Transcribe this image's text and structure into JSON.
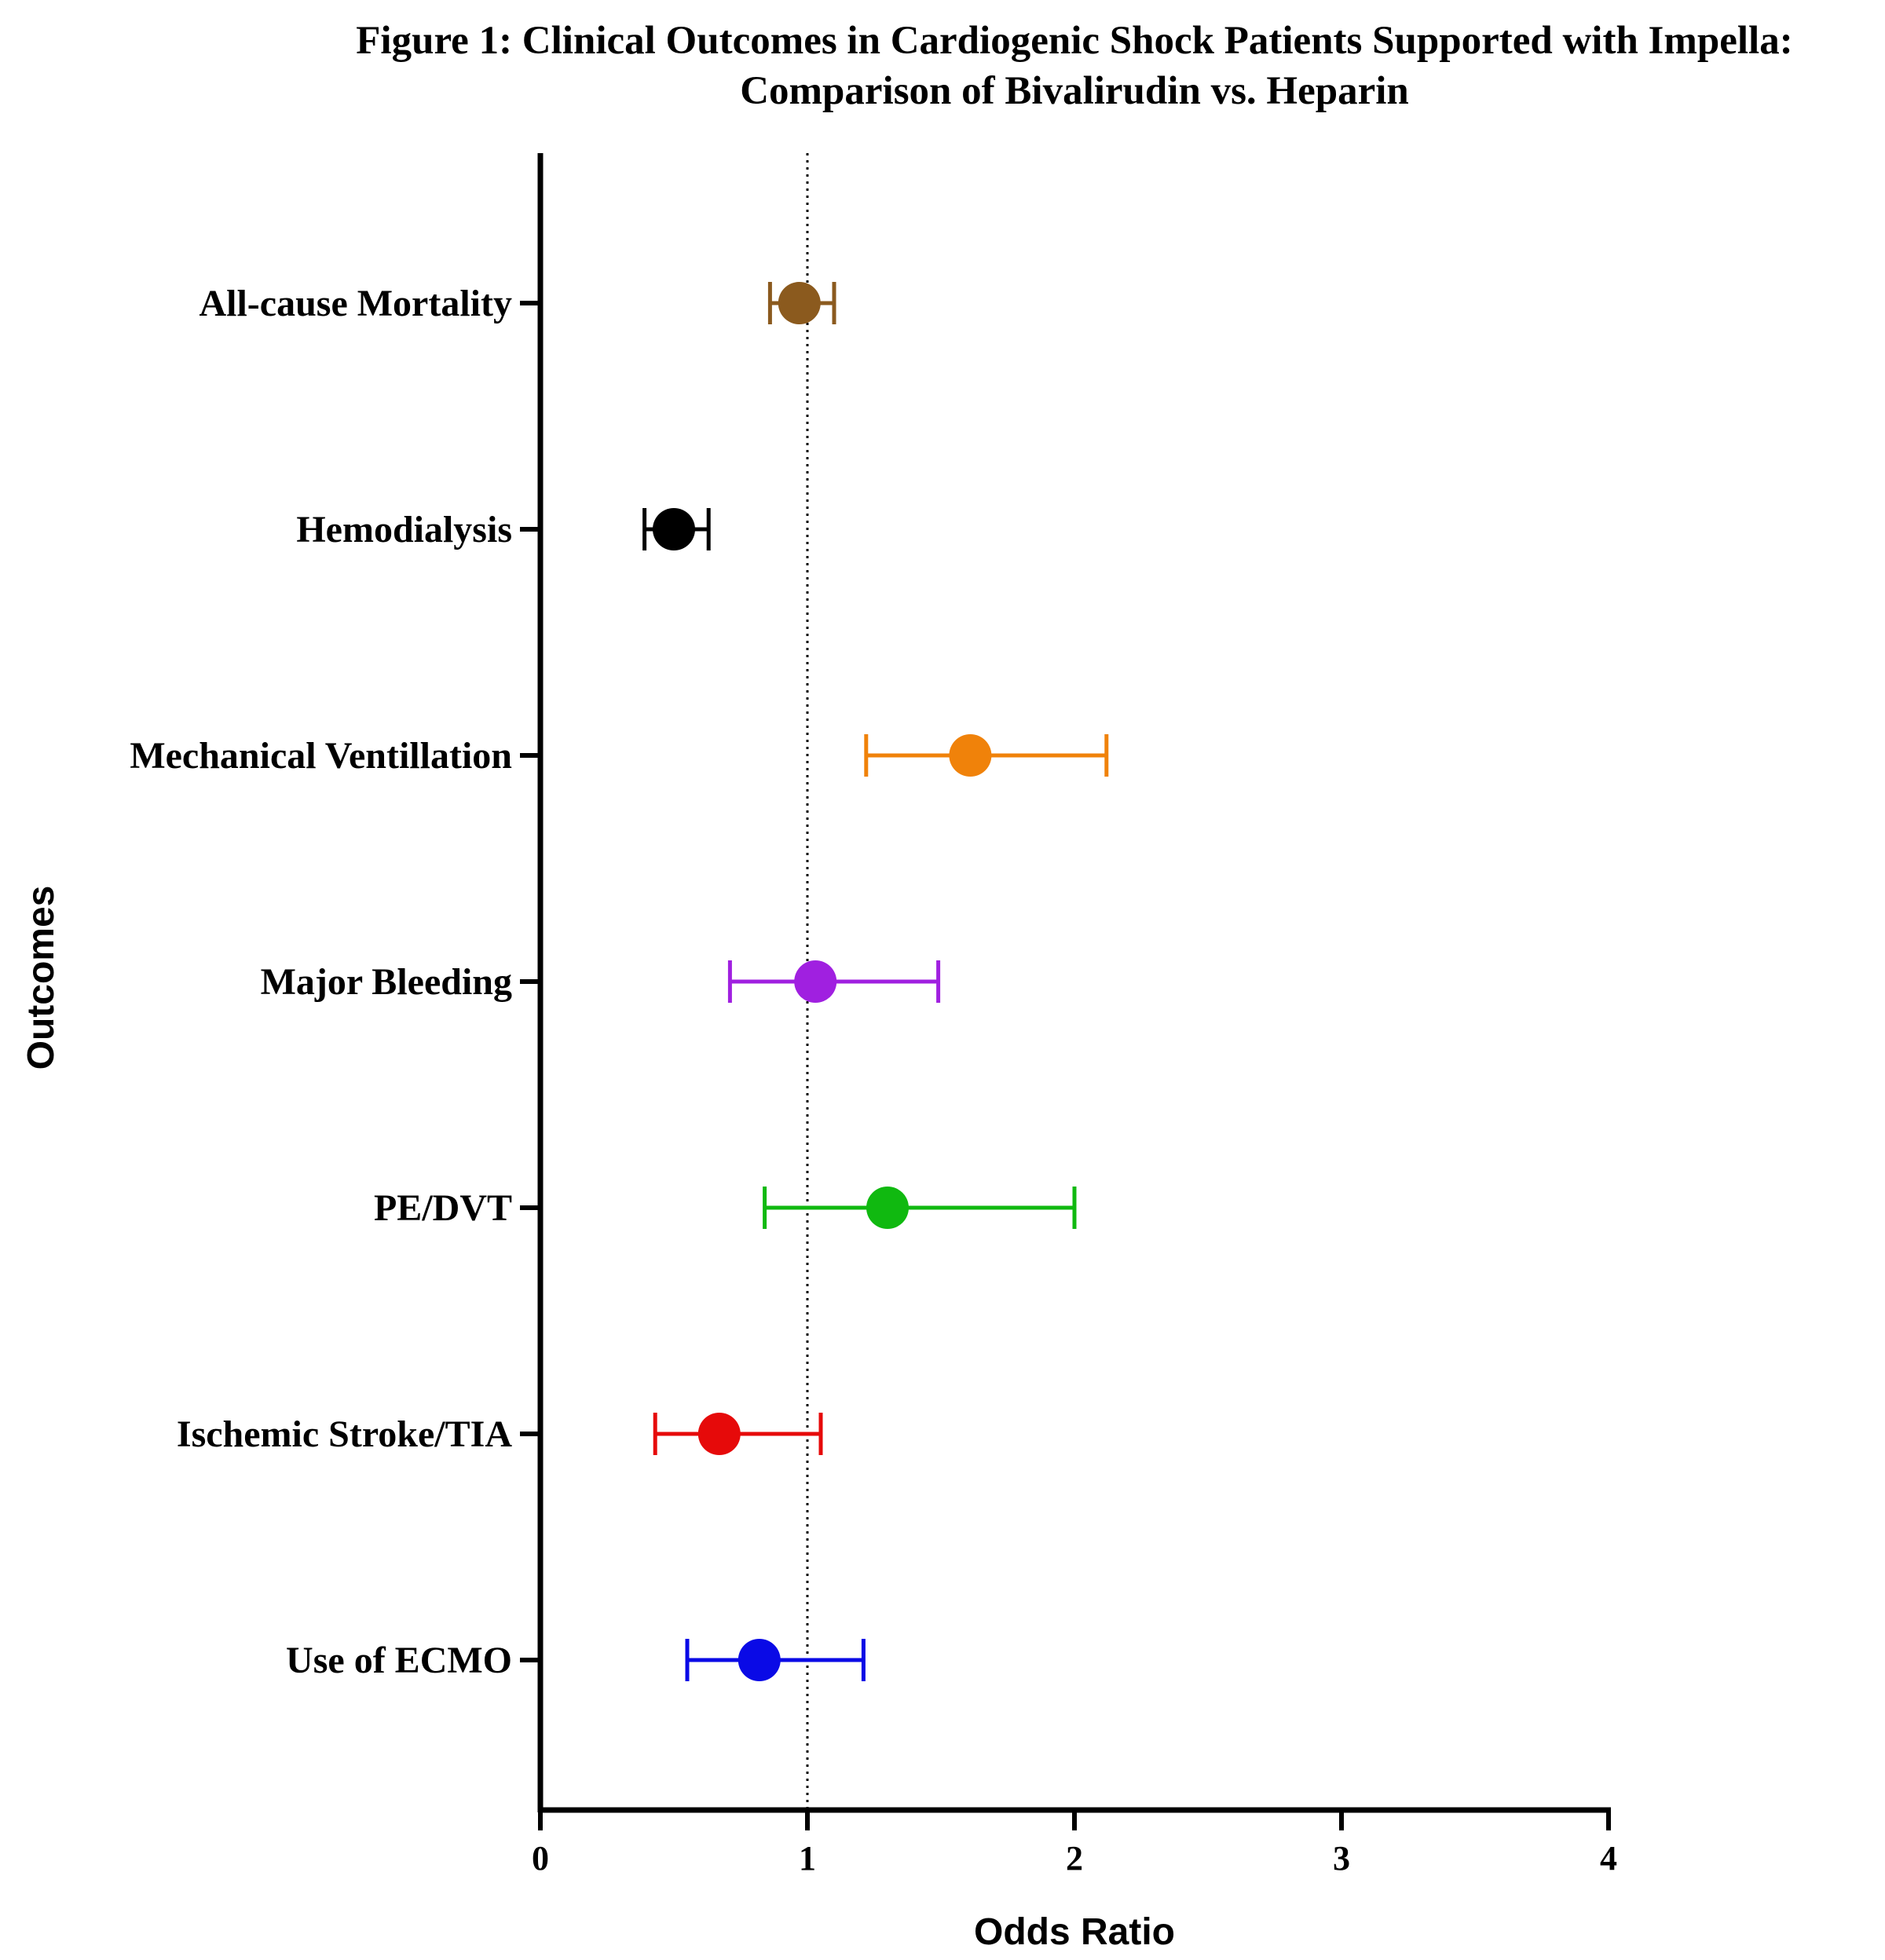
{
  "chart_data": {
    "type": "forest",
    "title_lines": [
      "Figure 1: Clinical Outcomes in Cardiogenic Shock Patients Supported with Impella:",
      "Comparison of Bivalirudin vs. Heparin"
    ],
    "xlabel": "Odds Ratio",
    "ylabel": "Outcomes",
    "xlim": [
      0,
      4
    ],
    "xticks": [
      "0",
      "1",
      "2",
      "3",
      "4"
    ],
    "reference_line": 1,
    "categories": [
      "All-cause Mortality",
      "Hemodialysis",
      "Mechanical Ventillation",
      "Major Bleeding",
      "PE/DVT",
      "Ischemic Stroke/TIA",
      "Use of ECMO"
    ],
    "series": [
      {
        "name": "All-cause Mortality",
        "or": 0.97,
        "ci_low": 0.86,
        "ci_high": 1.1,
        "color": "#8B5A1E"
      },
      {
        "name": "Hemodialysis",
        "or": 0.5,
        "ci_low": 0.39,
        "ci_high": 0.63,
        "color": "#000000"
      },
      {
        "name": "Mechanical Ventillation",
        "or": 1.61,
        "ci_low": 1.22,
        "ci_high": 2.12,
        "color": "#F0820A"
      },
      {
        "name": "Major Bleeding",
        "or": 1.03,
        "ci_low": 0.71,
        "ci_high": 1.49,
        "color": "#A020E0"
      },
      {
        "name": "PE/DVT",
        "or": 1.3,
        "ci_low": 0.84,
        "ci_high": 2.0,
        "color": "#10B910"
      },
      {
        "name": "Ischemic Stroke/TIA",
        "or": 0.67,
        "ci_low": 0.43,
        "ci_high": 1.05,
        "color": "#E60A0A"
      },
      {
        "name": "Use of ECMO",
        "or": 0.82,
        "ci_low": 0.55,
        "ci_high": 1.21,
        "color": "#0A0AE6"
      }
    ]
  }
}
